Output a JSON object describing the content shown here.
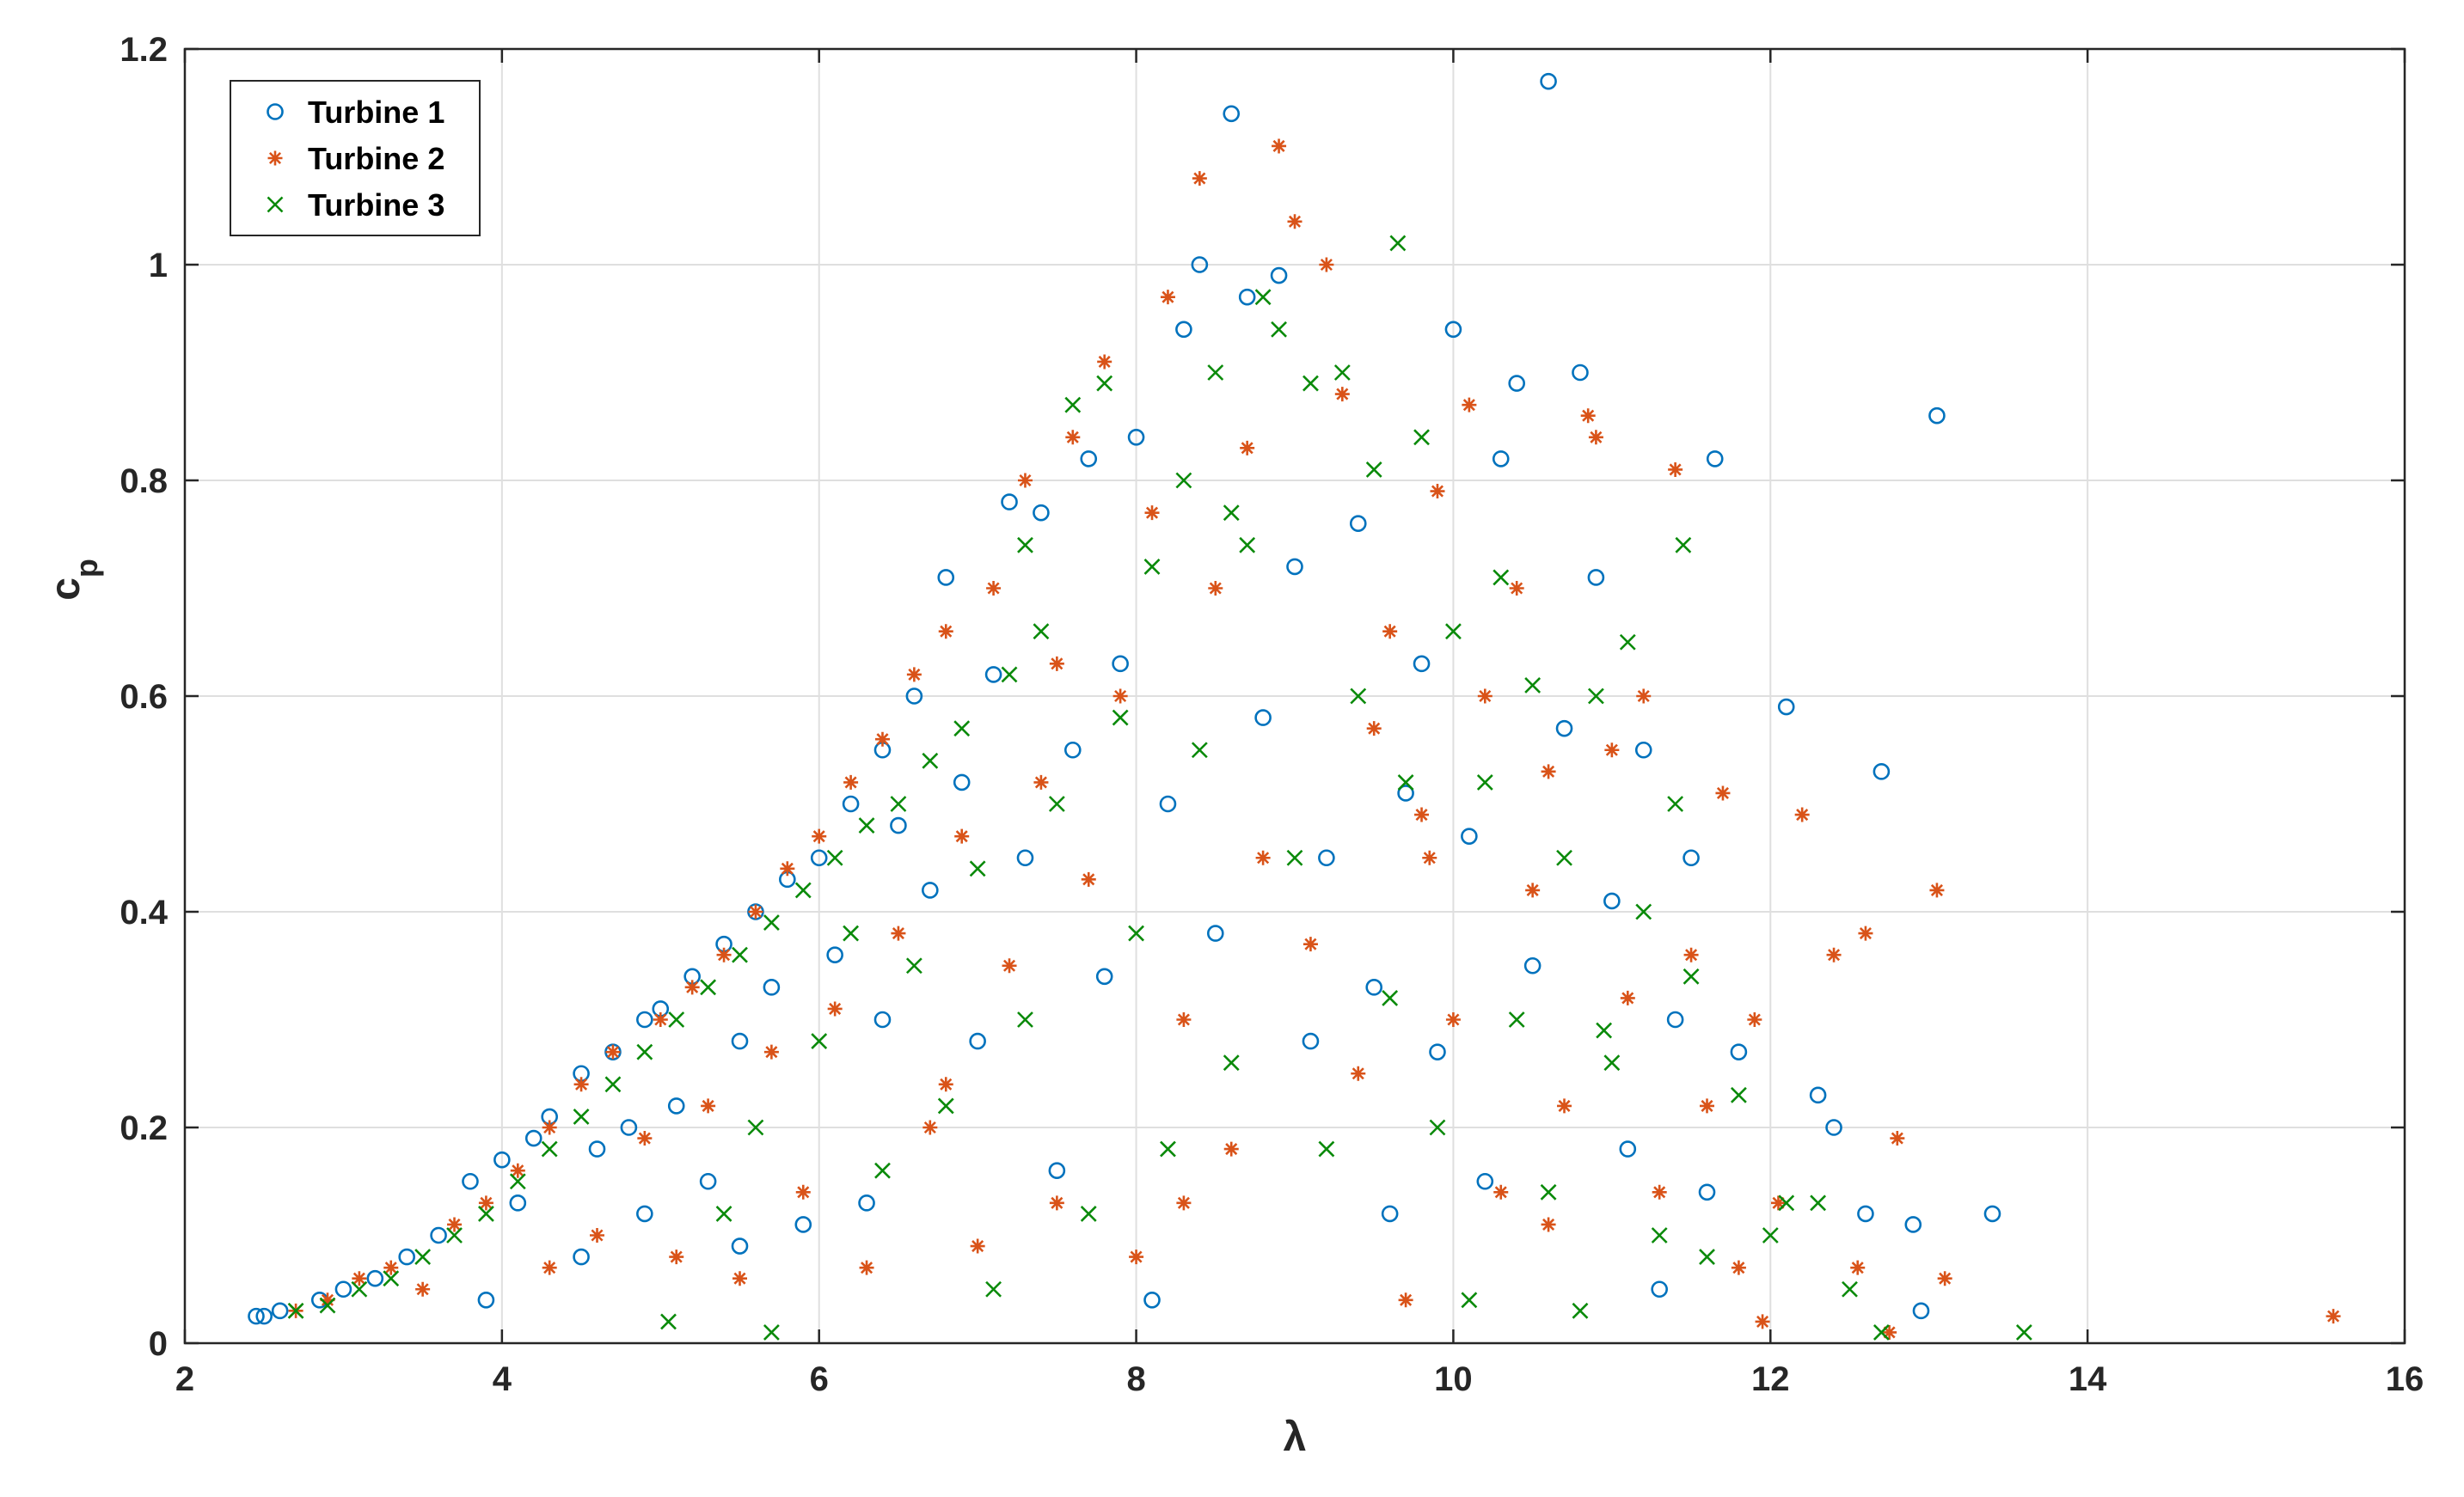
{
  "chart_data": {
    "type": "scatter",
    "title": "",
    "xlabel": "λ",
    "ylabel_main": "c",
    "ylabel_sub": "p",
    "xlim": [
      2,
      16
    ],
    "ylim": [
      0,
      1.2
    ],
    "x_ticks": [
      2,
      4,
      6,
      8,
      10,
      12,
      14,
      16
    ],
    "x_tick_labels": [
      "2",
      "4",
      "6",
      "8",
      "10",
      "12",
      "14",
      "16"
    ],
    "y_ticks": [
      0,
      0.2,
      0.4,
      0.6,
      0.8,
      1,
      1.2
    ],
    "y_tick_labels": [
      "0",
      "0.2",
      "0.4",
      "0.6",
      "0.8",
      "1",
      "1.2"
    ],
    "grid": true,
    "legend_position": "top-left",
    "series": [
      {
        "name": "Turbine 1",
        "marker": "circle",
        "color": "#0072BD",
        "points": [
          [
            2.45,
            0.025
          ],
          [
            2.5,
            0.025
          ],
          [
            2.6,
            0.03
          ],
          [
            2.85,
            0.04
          ],
          [
            3.0,
            0.05
          ],
          [
            3.2,
            0.06
          ],
          [
            3.4,
            0.08
          ],
          [
            3.6,
            0.1
          ],
          [
            3.8,
            0.15
          ],
          [
            3.9,
            0.04
          ],
          [
            4.0,
            0.17
          ],
          [
            4.1,
            0.13
          ],
          [
            4.2,
            0.19
          ],
          [
            4.3,
            0.21
          ],
          [
            4.5,
            0.08
          ],
          [
            4.5,
            0.25
          ],
          [
            4.6,
            0.18
          ],
          [
            4.7,
            0.27
          ],
          [
            4.8,
            0.2
          ],
          [
            4.9,
            0.12
          ],
          [
            4.9,
            0.3
          ],
          [
            5.0,
            0.31
          ],
          [
            5.1,
            0.22
          ],
          [
            5.2,
            0.34
          ],
          [
            5.3,
            0.15
          ],
          [
            5.4,
            0.37
          ],
          [
            5.5,
            0.09
          ],
          [
            5.5,
            0.28
          ],
          [
            5.6,
            0.4
          ],
          [
            5.7,
            0.33
          ],
          [
            5.8,
            0.43
          ],
          [
            5.9,
            0.11
          ],
          [
            6.0,
            0.45
          ],
          [
            6.1,
            0.36
          ],
          [
            6.2,
            0.5
          ],
          [
            6.3,
            0.13
          ],
          [
            6.4,
            0.55
          ],
          [
            6.4,
            0.3
          ],
          [
            6.5,
            0.48
          ],
          [
            6.6,
            0.6
          ],
          [
            6.7,
            0.42
          ],
          [
            6.8,
            0.71
          ],
          [
            6.9,
            0.52
          ],
          [
            7.0,
            0.28
          ],
          [
            7.1,
            0.62
          ],
          [
            7.2,
            0.78
          ],
          [
            7.3,
            0.45
          ],
          [
            7.4,
            0.77
          ],
          [
            7.5,
            0.16
          ],
          [
            7.6,
            0.55
          ],
          [
            7.7,
            0.82
          ],
          [
            7.8,
            0.34
          ],
          [
            7.9,
            0.63
          ],
          [
            8.0,
            0.84
          ],
          [
            8.1,
            0.04
          ],
          [
            8.2,
            0.5
          ],
          [
            8.3,
            0.94
          ],
          [
            8.4,
            1.0
          ],
          [
            8.5,
            0.38
          ],
          [
            8.6,
            1.14
          ],
          [
            8.7,
            0.97
          ],
          [
            8.8,
            0.58
          ],
          [
            8.9,
            0.99
          ],
          [
            9.0,
            0.72
          ],
          [
            9.1,
            0.28
          ],
          [
            9.2,
            0.45
          ],
          [
            9.4,
            0.76
          ],
          [
            9.5,
            0.33
          ],
          [
            9.6,
            0.12
          ],
          [
            9.7,
            0.51
          ],
          [
            9.8,
            0.63
          ],
          [
            9.9,
            0.27
          ],
          [
            10.0,
            0.94
          ],
          [
            10.1,
            0.47
          ],
          [
            10.2,
            0.15
          ],
          [
            10.3,
            0.82
          ],
          [
            10.4,
            0.89
          ],
          [
            10.5,
            0.35
          ],
          [
            10.6,
            1.17
          ],
          [
            10.7,
            0.57
          ],
          [
            10.8,
            0.9
          ],
          [
            10.9,
            0.71
          ],
          [
            11.0,
            0.41
          ],
          [
            11.1,
            0.18
          ],
          [
            11.2,
            0.55
          ],
          [
            11.3,
            0.05
          ],
          [
            11.4,
            0.3
          ],
          [
            11.5,
            0.45
          ],
          [
            11.6,
            0.14
          ],
          [
            11.65,
            0.82
          ],
          [
            11.8,
            0.27
          ],
          [
            12.1,
            0.59
          ],
          [
            12.3,
            0.23
          ],
          [
            12.4,
            0.2
          ],
          [
            12.6,
            0.12
          ],
          [
            12.7,
            0.53
          ],
          [
            12.9,
            0.11
          ],
          [
            13.05,
            0.86
          ],
          [
            13.4,
            0.12
          ],
          [
            12.95,
            0.03
          ]
        ]
      },
      {
        "name": "Turbine 2",
        "marker": "asterisk",
        "color": "#D95319",
        "points": [
          [
            2.7,
            0.03
          ],
          [
            2.9,
            0.04
          ],
          [
            3.1,
            0.06
          ],
          [
            3.3,
            0.07
          ],
          [
            3.5,
            0.05
          ],
          [
            3.7,
            0.11
          ],
          [
            3.9,
            0.13
          ],
          [
            4.1,
            0.16
          ],
          [
            4.3,
            0.07
          ],
          [
            4.3,
            0.2
          ],
          [
            4.5,
            0.24
          ],
          [
            4.6,
            0.1
          ],
          [
            4.7,
            0.27
          ],
          [
            4.9,
            0.19
          ],
          [
            5.0,
            0.3
          ],
          [
            5.1,
            0.08
          ],
          [
            5.2,
            0.33
          ],
          [
            5.3,
            0.22
          ],
          [
            5.4,
            0.36
          ],
          [
            5.5,
            0.06
          ],
          [
            5.6,
            0.4
          ],
          [
            5.7,
            0.27
          ],
          [
            5.8,
            0.44
          ],
          [
            5.9,
            0.14
          ],
          [
            6.0,
            0.47
          ],
          [
            6.1,
            0.31
          ],
          [
            6.2,
            0.52
          ],
          [
            6.3,
            0.07
          ],
          [
            6.4,
            0.56
          ],
          [
            6.5,
            0.38
          ],
          [
            6.6,
            0.62
          ],
          [
            6.7,
            0.2
          ],
          [
            6.8,
            0.66
          ],
          [
            6.9,
            0.47
          ],
          [
            7.0,
            0.09
          ],
          [
            7.1,
            0.7
          ],
          [
            7.2,
            0.35
          ],
          [
            7.3,
            0.8
          ],
          [
            7.4,
            0.52
          ],
          [
            7.5,
            0.13
          ],
          [
            7.6,
            0.84
          ],
          [
            7.7,
            0.43
          ],
          [
            7.8,
            0.91
          ],
          [
            7.9,
            0.6
          ],
          [
            8.0,
            0.08
          ],
          [
            8.1,
            0.77
          ],
          [
            8.2,
            0.97
          ],
          [
            8.3,
            0.3
          ],
          [
            8.4,
            1.08
          ],
          [
            8.5,
            0.7
          ],
          [
            8.6,
            0.18
          ],
          [
            8.7,
            0.83
          ],
          [
            8.8,
            0.45
          ],
          [
            8.9,
            1.11
          ],
          [
            9.0,
            1.04
          ],
          [
            9.1,
            0.37
          ],
          [
            9.2,
            1.0
          ],
          [
            9.3,
            0.88
          ],
          [
            9.4,
            0.25
          ],
          [
            9.5,
            0.57
          ],
          [
            9.6,
            0.66
          ],
          [
            9.7,
            0.04
          ],
          [
            9.8,
            0.49
          ],
          [
            9.9,
            0.79
          ],
          [
            10.0,
            0.3
          ],
          [
            10.1,
            0.87
          ],
          [
            10.2,
            0.6
          ],
          [
            10.3,
            0.14
          ],
          [
            10.4,
            0.7
          ],
          [
            10.5,
            0.42
          ],
          [
            10.6,
            0.53
          ],
          [
            10.7,
            0.22
          ],
          [
            10.85,
            0.86
          ],
          [
            10.9,
            0.84
          ],
          [
            11.0,
            0.55
          ],
          [
            11.1,
            0.32
          ],
          [
            11.2,
            0.6
          ],
          [
            11.3,
            0.14
          ],
          [
            11.4,
            0.81
          ],
          [
            11.5,
            0.36
          ],
          [
            11.6,
            0.22
          ],
          [
            11.7,
            0.51
          ],
          [
            11.8,
            0.07
          ],
          [
            11.9,
            0.3
          ],
          [
            12.05,
            0.13
          ],
          [
            12.2,
            0.49
          ],
          [
            12.4,
            0.36
          ],
          [
            12.55,
            0.07
          ],
          [
            12.6,
            0.38
          ],
          [
            12.8,
            0.19
          ],
          [
            13.05,
            0.42
          ],
          [
            13.1,
            0.06
          ],
          [
            15.55,
            0.025
          ],
          [
            8.3,
            0.13
          ],
          [
            6.8,
            0.24
          ],
          [
            7.5,
            0.63
          ],
          [
            9.85,
            0.45
          ],
          [
            10.6,
            0.11
          ],
          [
            11.95,
            0.02
          ],
          [
            12.75,
            0.01
          ]
        ]
      },
      {
        "name": "Turbine 3",
        "marker": "cross",
        "color": "#0A8A0A",
        "points": [
          [
            2.7,
            0.03
          ],
          [
            2.9,
            0.035
          ],
          [
            3.1,
            0.05
          ],
          [
            3.3,
            0.06
          ],
          [
            3.5,
            0.08
          ],
          [
            3.7,
            0.1
          ],
          [
            3.9,
            0.12
          ],
          [
            4.1,
            0.15
          ],
          [
            4.3,
            0.18
          ],
          [
            4.5,
            0.21
          ],
          [
            4.7,
            0.24
          ],
          [
            4.9,
            0.27
          ],
          [
            5.05,
            0.02
          ],
          [
            5.1,
            0.3
          ],
          [
            5.3,
            0.33
          ],
          [
            5.4,
            0.12
          ],
          [
            5.5,
            0.36
          ],
          [
            5.6,
            0.2
          ],
          [
            5.7,
            0.01
          ],
          [
            5.7,
            0.39
          ],
          [
            5.9,
            0.42
          ],
          [
            6.0,
            0.28
          ],
          [
            6.1,
            0.45
          ],
          [
            6.3,
            0.48
          ],
          [
            6.4,
            0.16
          ],
          [
            6.5,
            0.5
          ],
          [
            6.6,
            0.35
          ],
          [
            6.7,
            0.54
          ],
          [
            6.8,
            0.22
          ],
          [
            6.9,
            0.57
          ],
          [
            7.0,
            0.44
          ],
          [
            7.1,
            0.05
          ],
          [
            7.2,
            0.62
          ],
          [
            7.3,
            0.3
          ],
          [
            7.4,
            0.66
          ],
          [
            7.5,
            0.5
          ],
          [
            7.6,
            0.87
          ],
          [
            7.7,
            0.12
          ],
          [
            7.8,
            0.89
          ],
          [
            7.9,
            0.58
          ],
          [
            8.0,
            0.38
          ],
          [
            8.1,
            0.72
          ],
          [
            8.2,
            0.18
          ],
          [
            8.3,
            0.8
          ],
          [
            8.4,
            0.55
          ],
          [
            8.5,
            0.9
          ],
          [
            8.6,
            0.26
          ],
          [
            8.7,
            0.74
          ],
          [
            8.8,
            0.97
          ],
          [
            8.9,
            0.94
          ],
          [
            9.0,
            0.45
          ],
          [
            9.1,
            0.89
          ],
          [
            9.2,
            0.18
          ],
          [
            9.3,
            0.9
          ],
          [
            9.4,
            0.6
          ],
          [
            9.5,
            0.81
          ],
          [
            9.6,
            0.32
          ],
          [
            9.65,
            1.02
          ],
          [
            9.7,
            0.52
          ],
          [
            9.8,
            0.84
          ],
          [
            9.9,
            0.2
          ],
          [
            10.0,
            0.66
          ],
          [
            10.1,
            0.04
          ],
          [
            10.2,
            0.52
          ],
          [
            10.3,
            0.71
          ],
          [
            10.4,
            0.3
          ],
          [
            10.5,
            0.61
          ],
          [
            10.6,
            0.14
          ],
          [
            10.7,
            0.45
          ],
          [
            10.8,
            0.03
          ],
          [
            10.9,
            0.6
          ],
          [
            11.0,
            0.26
          ],
          [
            11.1,
            0.65
          ],
          [
            11.2,
            0.4
          ],
          [
            11.3,
            0.1
          ],
          [
            11.4,
            0.5
          ],
          [
            11.45,
            0.74
          ],
          [
            11.5,
            0.34
          ],
          [
            11.6,
            0.08
          ],
          [
            11.8,
            0.23
          ],
          [
            12.0,
            0.1
          ],
          [
            12.1,
            0.13
          ],
          [
            12.3,
            0.13
          ],
          [
            12.5,
            0.05
          ],
          [
            12.7,
            0.01
          ],
          [
            13.6,
            0.01
          ],
          [
            8.6,
            0.77
          ],
          [
            7.3,
            0.74
          ],
          [
            6.2,
            0.38
          ],
          [
            10.95,
            0.29
          ]
        ]
      }
    ]
  }
}
